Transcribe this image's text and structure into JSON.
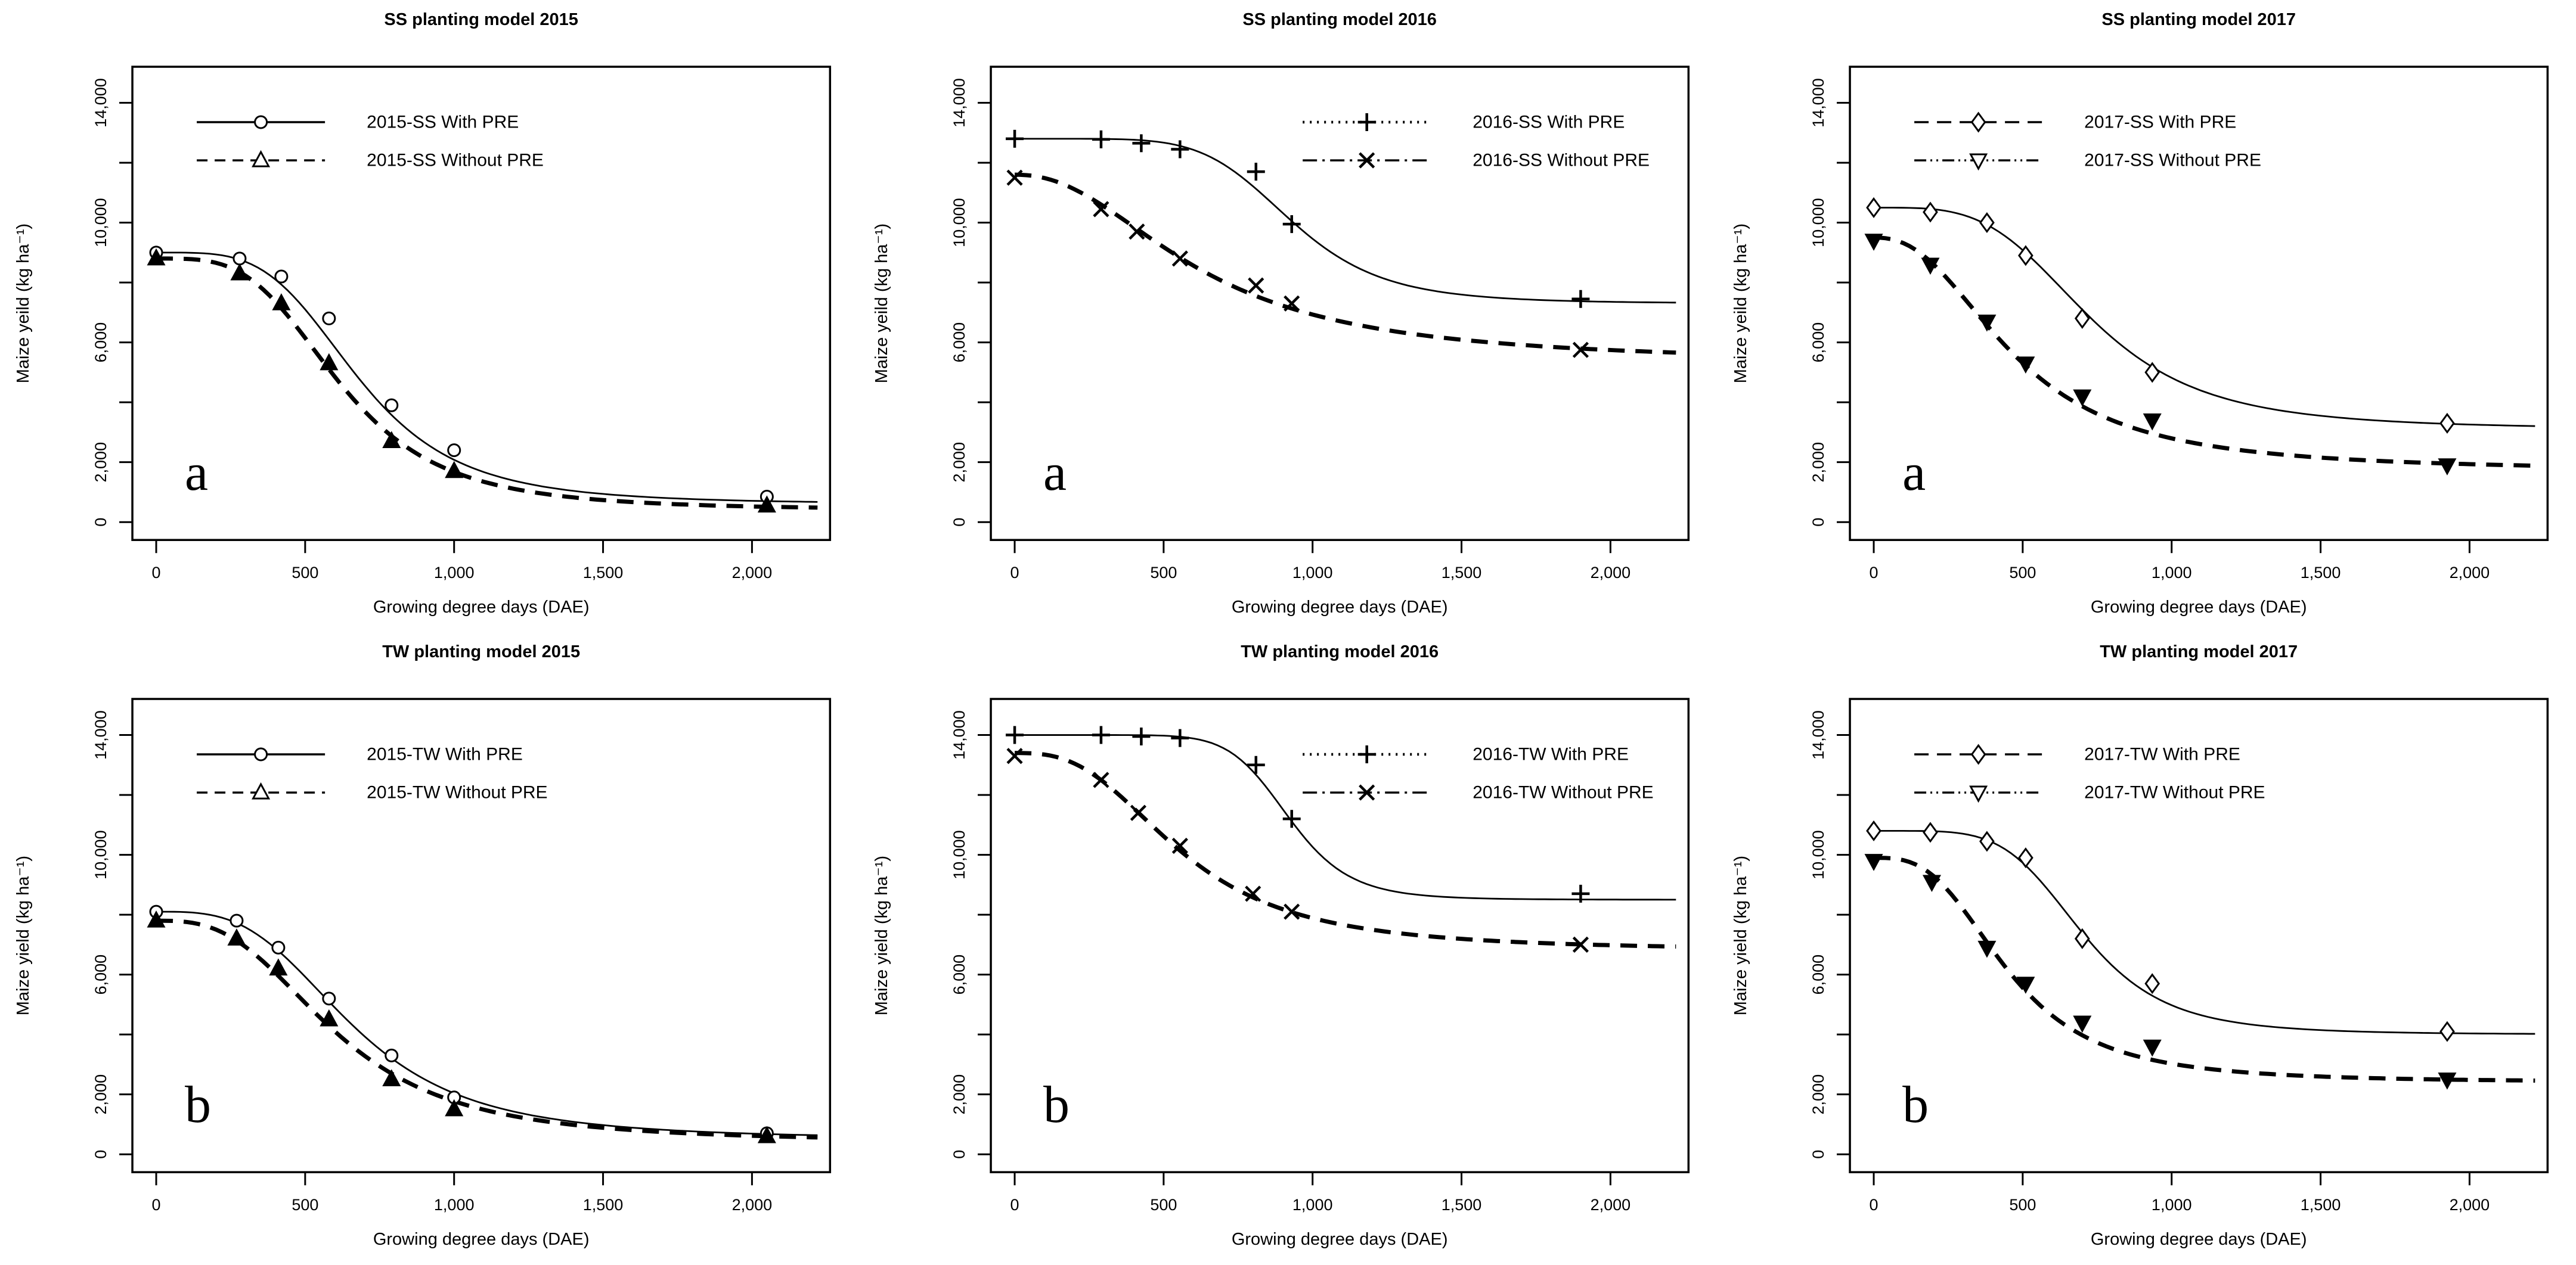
{
  "figure": {
    "background_color": "#ffffff",
    "ink_color": "#000000",
    "marker_fill_color": "#ffffff",
    "rows": 2,
    "cols": 3
  },
  "axes": {
    "x": {
      "label": "Growing degree days (DAE)",
      "tick_values": [
        0,
        500,
        1000,
        1500,
        2000
      ],
      "tick_labels": [
        "0",
        "500",
        "1,000",
        "1,500",
        "2,000"
      ],
      "range": [
        -80,
        2250
      ]
    },
    "y": {
      "tick_values": [
        0,
        2000,
        4000,
        6000,
        8000,
        10000,
        12000,
        14000
      ],
      "labeled_ticks": [
        {
          "v": 0,
          "label": "0"
        },
        {
          "v": 2000,
          "label": "2,000"
        },
        {
          "v": 6000,
          "label": "6,000"
        },
        {
          "v": 10000,
          "label": "10,000"
        },
        {
          "v": 14000,
          "label": "14,000"
        }
      ],
      "range": [
        -600,
        15200
      ]
    }
  },
  "chart_data": [
    {
      "id": "ss-2015",
      "type": "line",
      "title": "SS planting model 2015",
      "panel_letter": "a",
      "xlabel": "Growing degree days (DAE)",
      "ylabel": "Maize yeild (kg ha⁻¹)",
      "ylim": [
        0,
        14000
      ],
      "xlim": [
        0,
        2250
      ],
      "grid": "off",
      "legend_position": "upper-left",
      "series": [
        {
          "name": "2015-SS With PRE",
          "marker": "circle",
          "marker_filled": false,
          "plot_line": "thin-solid",
          "legend_line": "solid",
          "points": [
            [
              0,
              9000
            ],
            [
              280,
              8800
            ],
            [
              420,
              8200
            ],
            [
              580,
              6800
            ],
            [
              790,
              3900
            ],
            [
              1000,
              2400
            ],
            [
              2050,
              850
            ]
          ],
          "fit": {
            "upper": 9000,
            "lower": 600,
            "ec50": 680,
            "slope": 4.0
          }
        },
        {
          "name": "2015-SS Without PRE",
          "marker": "triangle-up",
          "marker_filled": true,
          "plot_line": "thick-dashed",
          "legend_line": "dashed",
          "points": [
            [
              0,
              8800
            ],
            [
              280,
              8300
            ],
            [
              420,
              7300
            ],
            [
              580,
              5300
            ],
            [
              790,
              2700
            ],
            [
              1000,
              1700
            ],
            [
              2050,
              550
            ]
          ],
          "fit": {
            "upper": 8800,
            "lower": 400,
            "ec50": 620,
            "slope": 3.6
          }
        }
      ]
    },
    {
      "id": "ss-2016",
      "type": "line",
      "title": "SS planting model 2016",
      "panel_letter": "a",
      "xlabel": "Growing degree days (DAE)",
      "ylabel": "Maize yeild (kg ha⁻¹)",
      "ylim": [
        0,
        14000
      ],
      "xlim": [
        0,
        2250
      ],
      "grid": "off",
      "legend_position": "upper-right",
      "series": [
        {
          "name": "2016-SS With PRE",
          "marker": "plus",
          "marker_filled": true,
          "plot_line": "thin-solid",
          "legend_line": "dotted",
          "points": [
            [
              0,
              12800
            ],
            [
              290,
              12780
            ],
            [
              425,
              12650
            ],
            [
              555,
              12450
            ],
            [
              810,
              11700
            ],
            [
              930,
              9950
            ],
            [
              1900,
              7450
            ]
          ],
          "fit": {
            "upper": 12800,
            "lower": 7300,
            "ec50": 930,
            "slope": 6.0
          }
        },
        {
          "name": "2016-SS Without PRE",
          "marker": "x",
          "marker_filled": true,
          "plot_line": "thick-dashed",
          "legend_line": "dashdot",
          "points": [
            [
              0,
              11500
            ],
            [
              290,
              10450
            ],
            [
              410,
              9700
            ],
            [
              555,
              8800
            ],
            [
              810,
              7900
            ],
            [
              930,
              7300
            ],
            [
              1900,
              5750
            ]
          ],
          "fit": {
            "upper": 11600,
            "lower": 5300,
            "ec50": 620,
            "slope": 2.2
          }
        }
      ]
    },
    {
      "id": "ss-2017",
      "type": "line",
      "title": "SS planting model 2017",
      "panel_letter": "a",
      "xlabel": "Growing degree days (DAE)",
      "ylabel": "Maize yeild (kg ha⁻¹)",
      "ylim": [
        0,
        14000
      ],
      "xlim": [
        0,
        2250
      ],
      "grid": "off",
      "legend_position": "upper-left",
      "series": [
        {
          "name": "2017-SS With PRE",
          "marker": "diamond",
          "marker_filled": false,
          "plot_line": "thin-solid",
          "legend_line": "longdash",
          "points": [
            [
              0,
              10500
            ],
            [
              190,
              10350
            ],
            [
              380,
              10000
            ],
            [
              510,
              8900
            ],
            [
              700,
              6800
            ],
            [
              935,
              5000
            ],
            [
              1925,
              3300
            ]
          ],
          "fit": {
            "upper": 10500,
            "lower": 3100,
            "ec50": 730,
            "slope": 3.8
          }
        },
        {
          "name": "2017-SS Without PRE",
          "marker": "triangle-down",
          "marker_filled": true,
          "plot_line": "thick-dashed",
          "legend_line": "dashdotdot",
          "points": [
            [
              0,
              9400
            ],
            [
              190,
              8600
            ],
            [
              380,
              6700
            ],
            [
              510,
              5300
            ],
            [
              700,
              4200
            ],
            [
              935,
              3400
            ],
            [
              1925,
              1900
            ]
          ],
          "fit": {
            "upper": 9500,
            "lower": 1700,
            "ec50": 470,
            "slope": 2.4
          }
        }
      ]
    },
    {
      "id": "tw-2015",
      "type": "line",
      "title": "TW planting model 2015",
      "panel_letter": "b",
      "xlabel": "Growing degree days (DAE)",
      "ylabel": "Maize yield (kg ha⁻¹)",
      "ylim": [
        0,
        14000
      ],
      "xlim": [
        0,
        2250
      ],
      "grid": "off",
      "legend_position": "upper-left",
      "series": [
        {
          "name": "2015-TW With PRE",
          "marker": "circle",
          "marker_filled": false,
          "plot_line": "thin-solid",
          "legend_line": "solid",
          "points": [
            [
              0,
              8100
            ],
            [
              270,
              7800
            ],
            [
              410,
              6900
            ],
            [
              580,
              5200
            ],
            [
              790,
              3300
            ],
            [
              1000,
              1900
            ],
            [
              2050,
              700
            ]
          ],
          "fit": {
            "upper": 8100,
            "lower": 500,
            "ec50": 660,
            "slope": 3.3
          }
        },
        {
          "name": "2015-TW Without PRE",
          "marker": "triangle-up",
          "marker_filled": true,
          "plot_line": "thick-dashed",
          "legend_line": "dashed",
          "points": [
            [
              0,
              7800
            ],
            [
              270,
              7200
            ],
            [
              410,
              6200
            ],
            [
              580,
              4500
            ],
            [
              790,
              2500
            ],
            [
              1000,
              1500
            ],
            [
              2050,
              600
            ]
          ],
          "fit": {
            "upper": 7800,
            "lower": 400,
            "ec50": 600,
            "slope": 2.9
          }
        }
      ]
    },
    {
      "id": "tw-2016",
      "type": "line",
      "title": "TW planting model 2016",
      "panel_letter": "b",
      "xlabel": "Growing degree days (DAE)",
      "ylabel": "Maize yield (kg ha⁻¹)",
      "ylim": [
        0,
        14000
      ],
      "xlim": [
        0,
        2250
      ],
      "grid": "off",
      "legend_position": "upper-right",
      "series": [
        {
          "name": "2016-TW With PRE",
          "marker": "plus",
          "marker_filled": true,
          "plot_line": "thin-solid",
          "legend_line": "dotted",
          "points": [
            [
              0,
              14000
            ],
            [
              290,
              14000
            ],
            [
              425,
              13950
            ],
            [
              555,
              13900
            ],
            [
              810,
              13000
            ],
            [
              930,
              11200
            ],
            [
              1900,
              8700
            ]
          ],
          "fit": {
            "upper": 14000,
            "lower": 8500,
            "ec50": 920,
            "slope": 9.0
          }
        },
        {
          "name": "2016-TW Without PRE",
          "marker": "x",
          "marker_filled": true,
          "plot_line": "thick-dashed",
          "legend_line": "dashdot",
          "points": [
            [
              0,
              13300
            ],
            [
              290,
              12500
            ],
            [
              415,
              11400
            ],
            [
              555,
              10300
            ],
            [
              800,
              8700
            ],
            [
              930,
              8100
            ],
            [
              1900,
              7000
            ]
          ],
          "fit": {
            "upper": 13400,
            "lower": 6800,
            "ec50": 560,
            "slope": 2.8
          }
        }
      ]
    },
    {
      "id": "tw-2017",
      "type": "line",
      "title": "TW planting model 2017",
      "panel_letter": "b",
      "xlabel": "Growing degree days (DAE)",
      "ylabel": "Maize yield (kg ha⁻¹)",
      "ylim": [
        0,
        14000
      ],
      "xlim": [
        0,
        2250
      ],
      "grid": "off",
      "legend_position": "upper-left",
      "series": [
        {
          "name": "2017-TW With PRE",
          "marker": "diamond",
          "marker_filled": false,
          "plot_line": "thin-solid",
          "legend_line": "longdash",
          "points": [
            [
              0,
              10800
            ],
            [
              190,
              10750
            ],
            [
              380,
              10450
            ],
            [
              510,
              9900
            ],
            [
              700,
              7200
            ],
            [
              935,
              5700
            ],
            [
              1925,
              4100
            ]
          ],
          "fit": {
            "upper": 10800,
            "lower": 4000,
            "ec50": 700,
            "slope": 5.0
          }
        },
        {
          "name": "2017-TW Without PRE",
          "marker": "triangle-down",
          "marker_filled": true,
          "plot_line": "thick-dashed",
          "legend_line": "dashdotdot",
          "points": [
            [
              0,
              9800
            ],
            [
              195,
              9100
            ],
            [
              380,
              6900
            ],
            [
              510,
              5700
            ],
            [
              700,
              4400
            ],
            [
              935,
              3600
            ],
            [
              1925,
              2500
            ]
          ],
          "fit": {
            "upper": 9900,
            "lower": 2400,
            "ec50": 450,
            "slope": 3.0
          }
        }
      ]
    }
  ]
}
